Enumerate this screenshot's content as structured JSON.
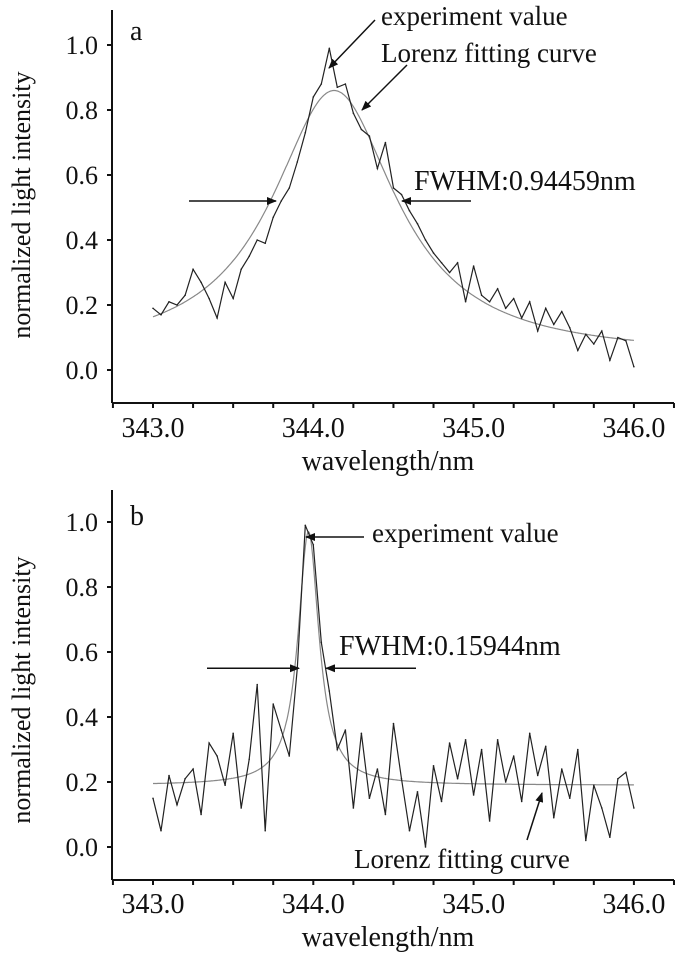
{
  "chart_data": [
    {
      "type": "line",
      "panel_label": "a",
      "xlabel": "wavelength/nm",
      "ylabel": "normalized light intensity",
      "xlim": [
        342.75,
        346.25
      ],
      "ylim": [
        -0.1,
        1.12
      ],
      "x_ticks": [
        "343.0",
        "344.0",
        "345.0",
        "346.0"
      ],
      "y_ticks": [
        "0.0",
        "0.2",
        "0.4",
        "0.6",
        "0.8",
        "1.0"
      ],
      "grid": false,
      "annotations": {
        "experiment": "experiment value",
        "fit": "Lorenz fitting curve",
        "fwhm": "FWHM:0.94459nm"
      },
      "fit_params": {
        "center": 344.13,
        "fwhm": 0.94459,
        "amplitude": 0.818,
        "offset": 0.042
      },
      "half_max_level": 0.52,
      "series": [
        {
          "name": "experiment value",
          "x_start": 343.0,
          "x_step": 0.05,
          "values": [
            0.19,
            0.17,
            0.21,
            0.2,
            0.23,
            0.31,
            0.27,
            0.22,
            0.16,
            0.27,
            0.22,
            0.31,
            0.35,
            0.4,
            0.39,
            0.47,
            0.52,
            0.56,
            0.64,
            0.73,
            0.84,
            0.88,
            0.99,
            0.87,
            0.88,
            0.79,
            0.74,
            0.72,
            0.62,
            0.7,
            0.56,
            0.54,
            0.49,
            0.45,
            0.4,
            0.36,
            0.33,
            0.3,
            0.33,
            0.21,
            0.32,
            0.23,
            0.21,
            0.25,
            0.19,
            0.22,
            0.16,
            0.21,
            0.12,
            0.19,
            0.14,
            0.18,
            0.13,
            0.06,
            0.11,
            0.08,
            0.12,
            0.03,
            0.1,
            0.09,
            0.01
          ]
        },
        {
          "name": "Lorenz fitting curve",
          "type": "lorentz"
        }
      ]
    },
    {
      "type": "line",
      "panel_label": "b",
      "xlabel": "wavelength/nm",
      "ylabel": "normalized light intensity",
      "xlim": [
        342.75,
        346.25
      ],
      "ylim": [
        -0.1,
        1.12
      ],
      "x_ticks": [
        "343.0",
        "344.0",
        "345.0",
        "346.0"
      ],
      "y_ticks": [
        "0.0",
        "0.2",
        "0.4",
        "0.6",
        "0.8",
        "1.0"
      ],
      "grid": false,
      "annotations": {
        "experiment": "experiment value",
        "fit": "Lorenz fitting curve",
        "fwhm": "FWHM:0.15944nm"
      },
      "fit_params": {
        "center": 343.97,
        "fwhm": 0.15944,
        "amplitude": 0.78,
        "offset": 0.19
      },
      "half_max_level": 0.55,
      "series": [
        {
          "name": "experiment value",
          "x_start": 343.0,
          "x_step": 0.05,
          "values": [
            0.15,
            0.05,
            0.22,
            0.13,
            0.21,
            0.24,
            0.1,
            0.32,
            0.28,
            0.19,
            0.35,
            0.12,
            0.27,
            0.5,
            0.05,
            0.44,
            0.36,
            0.28,
            0.55,
            0.99,
            0.93,
            0.63,
            0.48,
            0.3,
            0.36,
            0.12,
            0.35,
            0.15,
            0.24,
            0.1,
            0.38,
            0.21,
            0.05,
            0.17,
            0.0,
            0.25,
            0.14,
            0.32,
            0.21,
            0.33,
            0.16,
            0.3,
            0.08,
            0.33,
            0.2,
            0.28,
            0.14,
            0.35,
            0.22,
            0.31,
            0.09,
            0.24,
            0.15,
            0.3,
            0.02,
            0.19,
            0.12,
            0.03,
            0.21,
            0.23,
            0.12
          ]
        },
        {
          "name": "Lorenz fitting curve",
          "type": "lorentz"
        }
      ]
    }
  ]
}
